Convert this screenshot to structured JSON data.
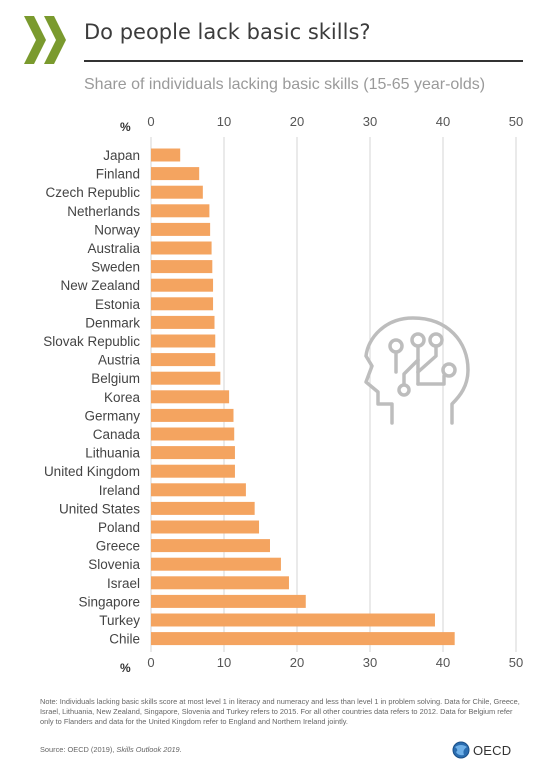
{
  "header": {
    "title": "Do people lack basic skills?",
    "subtitle": "Share of individuals lacking basic skills (15-65 year-olds)"
  },
  "chart_data": {
    "type": "bar",
    "orientation": "horizontal",
    "categories": [
      "Japan",
      "Finland",
      "Czech Republic",
      "Netherlands",
      "Norway",
      "Australia",
      "Sweden",
      "New Zealand",
      "Estonia",
      "Denmark",
      "Slovak Republic",
      "Austria",
      "Belgium",
      "Korea",
      "Germany",
      "Canada",
      "Lithuania",
      "United Kingdom",
      "Ireland",
      "United States",
      "Poland",
      "Greece",
      "Slovenia",
      "Israel",
      "Singapore",
      "Turkey",
      "Chile"
    ],
    "values": [
      4.0,
      6.6,
      7.1,
      8.0,
      8.1,
      8.3,
      8.4,
      8.5,
      8.5,
      8.7,
      8.8,
      8.8,
      9.5,
      10.7,
      11.3,
      11.4,
      11.5,
      11.5,
      13.0,
      14.2,
      14.8,
      16.3,
      17.8,
      18.9,
      21.2,
      38.9,
      41.6
    ],
    "xlim": [
      0,
      50
    ],
    "xticks": [
      0,
      10,
      20,
      30,
      40,
      50
    ],
    "axis_unit_label": "%",
    "grid": true,
    "bar_color": "#F4A460"
  },
  "footer": {
    "note": "Note: Individuals lacking basic skills score at most level 1 in literacy and numeracy and less than level 1 in problem solving. Data for Chile, Greece, Israel, Lithuania, New Zealand, Singapore, Slovenia and Turkey refers to 2015. For all other countries data refers to 2012. Data for Belgium refer only to Flanders and data for the United Kingdom refer to England and Northern Ireland jointly.",
    "source_prefix": "Source: OECD (2019), ",
    "source_title": "Skills Outlook 2019",
    "source_suffix": ".",
    "brand": "OECD"
  },
  "colors": {
    "logo": "#7A9A2E",
    "bar": "#F4A460",
    "icon": "#BDBDBD"
  },
  "icons": {
    "logo": "oecd-chevrons-icon",
    "illustration": "head-circuit-icon",
    "brand": "globe-icon"
  }
}
